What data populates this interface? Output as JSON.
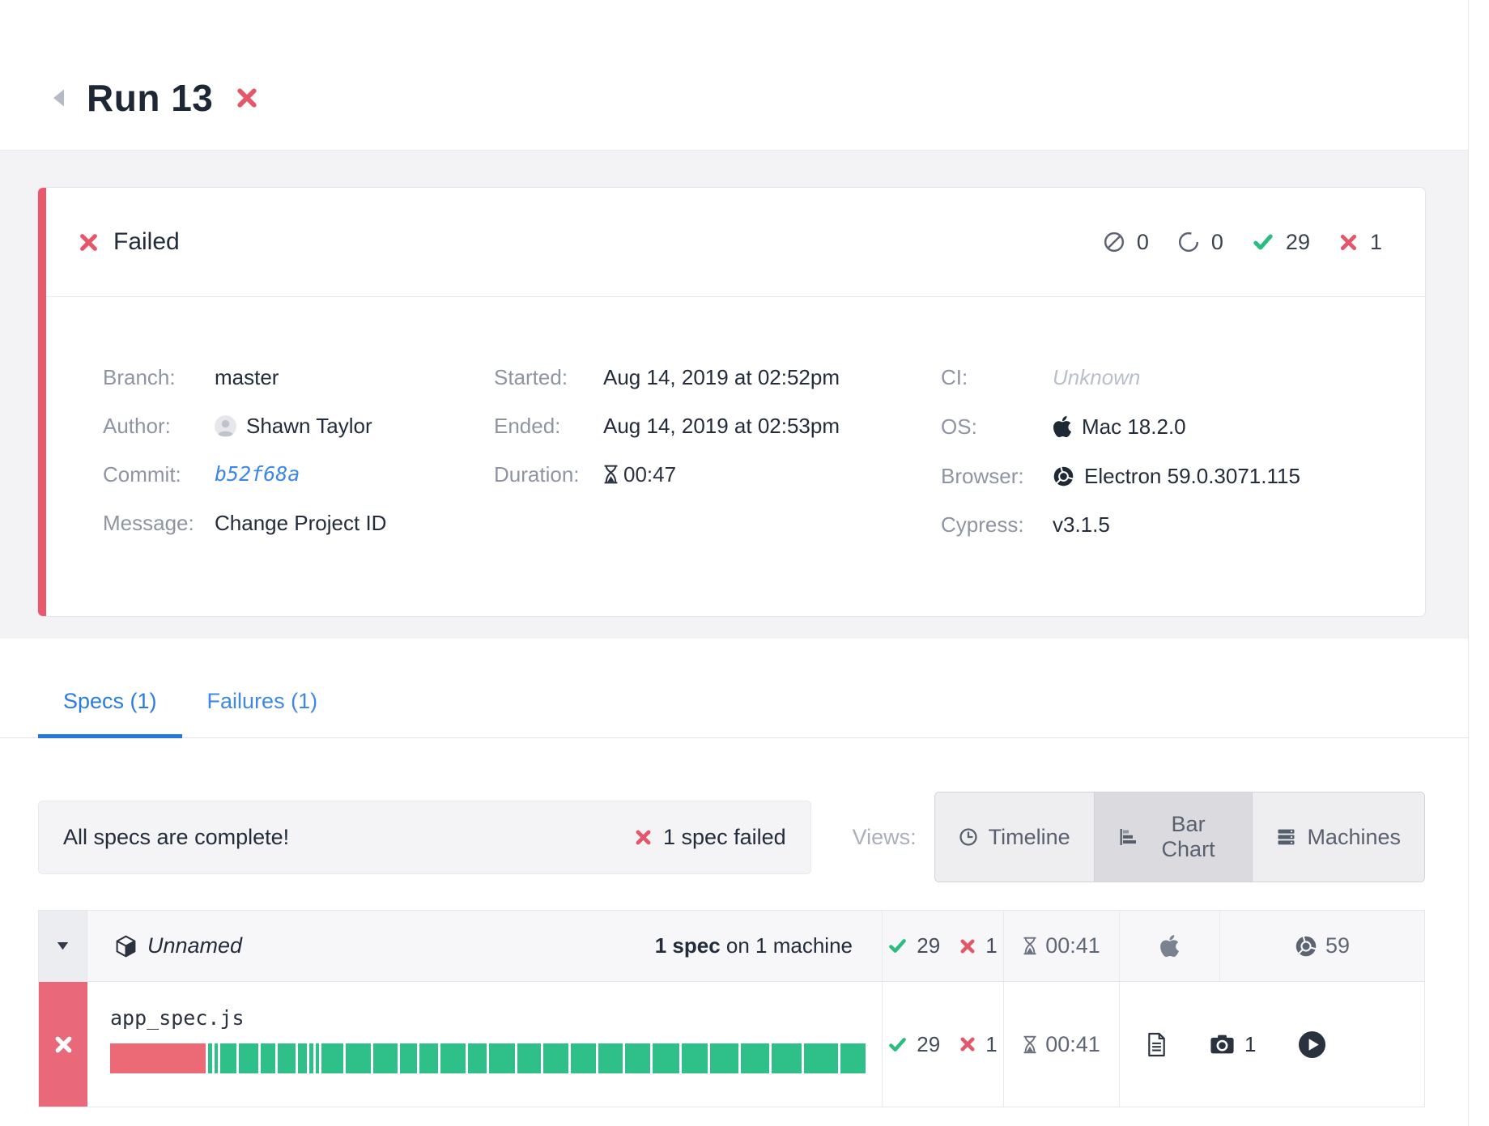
{
  "colors": {
    "fail_red": "#e4576a",
    "pass_green": "#2abd7f",
    "bar_red": "#ec6a76",
    "bar_green": "#2fbf88",
    "link_blue": "#3d87e4",
    "tab_blue": "#2a7ce0"
  },
  "header": {
    "title": "Run 13"
  },
  "summary": {
    "status_label": "Failed",
    "stats": [
      {
        "name": "skipped",
        "value": "0"
      },
      {
        "name": "pending",
        "value": "0"
      },
      {
        "name": "passed",
        "value": "29"
      },
      {
        "name": "failed",
        "value": "1"
      }
    ],
    "fields_left": [
      {
        "label": "Branch:",
        "value": "master"
      },
      {
        "label": "Author:",
        "value": "Shawn Taylor"
      },
      {
        "label": "Commit:",
        "value": "b52f68a"
      },
      {
        "label": "Message:",
        "value": "Change Project ID"
      }
    ],
    "fields_middle": [
      {
        "label": "Started:",
        "value": "Aug 14, 2019 at 02:52pm"
      },
      {
        "label": "Ended:",
        "value": "Aug 14, 2019 at 02:53pm"
      },
      {
        "label": "Duration:",
        "value": "00:47"
      }
    ],
    "fields_right": [
      {
        "label": "CI:",
        "value": "Unknown"
      },
      {
        "label": "OS:",
        "value": "Mac 18.2.0"
      },
      {
        "label": "Browser:",
        "value": "Electron 59.0.3071.115"
      },
      {
        "label": "Cypress:",
        "value": "v3.1.5"
      }
    ]
  },
  "tabs": [
    {
      "label": "Specs (1)",
      "active": true
    },
    {
      "label": "Failures (1)",
      "active": false
    }
  ],
  "toolbar": {
    "complete_message": "All specs are complete!",
    "failed_note": "1 spec failed",
    "views_label": "Views:",
    "views": [
      {
        "label": "Timeline",
        "active": false
      },
      {
        "label": "Bar Chart",
        "active": true
      },
      {
        "label": "Machines",
        "active": false
      }
    ]
  },
  "spec_table": {
    "group": {
      "name": "Unnamed",
      "count_bold": "1 spec",
      "count_rest": " on 1 machine",
      "passed": "29",
      "failed": "1",
      "duration": "00:41",
      "browser_version": "59"
    },
    "spec": {
      "file": "app_spec.js",
      "passed": "29",
      "failed": "1",
      "duration": "00:41",
      "screenshots": "1",
      "progress_segments": [
        {
          "status": "failed",
          "weight": 117
        },
        {
          "status": "passed",
          "weight": 5
        },
        {
          "status": "passed",
          "weight": 4
        },
        {
          "status": "passed",
          "weight": 20
        },
        {
          "status": "passed",
          "weight": 24
        },
        {
          "status": "passed",
          "weight": 17
        },
        {
          "status": "passed",
          "weight": 22
        },
        {
          "status": "passed",
          "weight": 11
        },
        {
          "status": "passed",
          "weight": 5
        },
        {
          "status": "passed",
          "weight": 4
        },
        {
          "status": "passed",
          "weight": 27
        },
        {
          "status": "passed",
          "weight": 31
        },
        {
          "status": "passed",
          "weight": 29
        },
        {
          "status": "passed",
          "weight": 21
        },
        {
          "status": "passed",
          "weight": 23
        },
        {
          "status": "passed",
          "weight": 31
        },
        {
          "status": "passed",
          "weight": 23
        },
        {
          "status": "passed",
          "weight": 31
        },
        {
          "status": "passed",
          "weight": 29
        },
        {
          "status": "passed",
          "weight": 31
        },
        {
          "status": "passed",
          "weight": 31
        },
        {
          "status": "passed",
          "weight": 29
        },
        {
          "status": "passed",
          "weight": 31
        },
        {
          "status": "passed",
          "weight": 33
        },
        {
          "status": "passed",
          "weight": 31
        },
        {
          "status": "passed",
          "weight": 35
        },
        {
          "status": "passed",
          "weight": 35
        },
        {
          "status": "passed",
          "weight": 37
        },
        {
          "status": "passed",
          "weight": 41
        },
        {
          "status": "passed",
          "weight": 31
        }
      ]
    }
  }
}
